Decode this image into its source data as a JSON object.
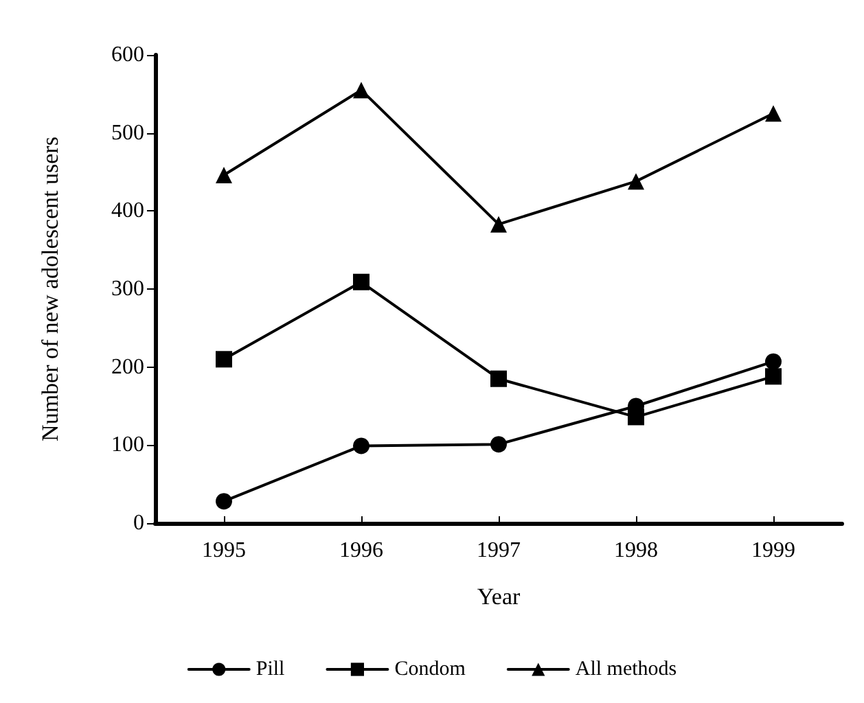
{
  "chart_data": {
    "type": "line",
    "xlabel": "Year",
    "ylabel": "Number of new adolescent users",
    "categories": [
      "1995",
      "1996",
      "1997",
      "1998",
      "1999"
    ],
    "series": [
      {
        "name": "Pill",
        "color": "#000000",
        "marker": "circle",
        "values": [
          28,
          99,
          101,
          150,
          207
        ]
      },
      {
        "name": "Condom",
        "color": "#000000",
        "marker": "square",
        "values": [
          210,
          309,
          185,
          136,
          188
        ]
      },
      {
        "name": "All methods",
        "color": "#000000",
        "marker": "triangle",
        "values": [
          446,
          555,
          383,
          438,
          525
        ]
      }
    ],
    "ylim": [
      0,
      600
    ],
    "yticks": [
      0,
      100,
      200,
      300,
      400,
      500,
      600
    ],
    "grid": false,
    "legend": "bottom",
    "line_style": "solid"
  }
}
